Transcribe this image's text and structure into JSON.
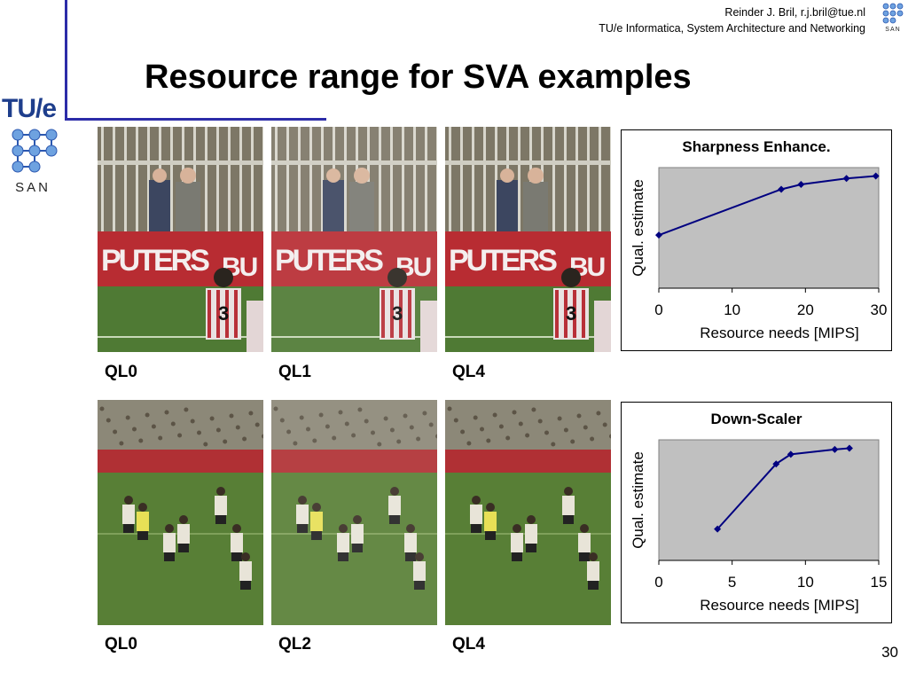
{
  "header": {
    "author_line": "Reinder J. Bril, r.j.bril@tue.nl",
    "affiliation_line": "TU/e Informatica, System Architecture and Networking",
    "logo_small_text": "SAN"
  },
  "logo": {
    "tue_text": "TU/e",
    "san_text": "SAN"
  },
  "title": "Resource range for SVA examples",
  "photos_top": {
    "labels": [
      "QL0",
      "QL1",
      "QL4"
    ],
    "sign_text": "PUTERS",
    "sign_text_2": "BU",
    "shirt_number": "3"
  },
  "photos_bottom": {
    "labels": [
      "QL0",
      "QL2",
      "QL4"
    ]
  },
  "chart_data": [
    {
      "type": "line",
      "title": "Sharpness Enhance.",
      "xlabel": "Resource needs [MIPS]",
      "ylabel": "Qual. estimate",
      "xlim": [
        0,
        30
      ],
      "xticks": [
        "0",
        "10",
        "20",
        "30"
      ],
      "ylim": [
        0,
        1
      ],
      "grid": false,
      "plot_background": "#c0c0c0",
      "series_color": "#000080",
      "x": [
        0,
        16.7,
        19.4,
        25.6,
        29.6
      ],
      "y": [
        0.44,
        0.82,
        0.86,
        0.91,
        0.93
      ]
    },
    {
      "type": "line",
      "title": "Down-Scaler",
      "xlabel": "Resource needs [MIPS]",
      "ylabel": "Qual. estimate",
      "xlim": [
        0,
        15
      ],
      "xticks": [
        "0",
        "5",
        "10",
        "15"
      ],
      "ylim": [
        0,
        1
      ],
      "grid": false,
      "plot_background": "#c0c0c0",
      "series_color": "#000080",
      "x": [
        4,
        8,
        9,
        12,
        13
      ],
      "y": [
        0.26,
        0.8,
        0.88,
        0.92,
        0.93
      ]
    }
  ],
  "page_number": "30"
}
